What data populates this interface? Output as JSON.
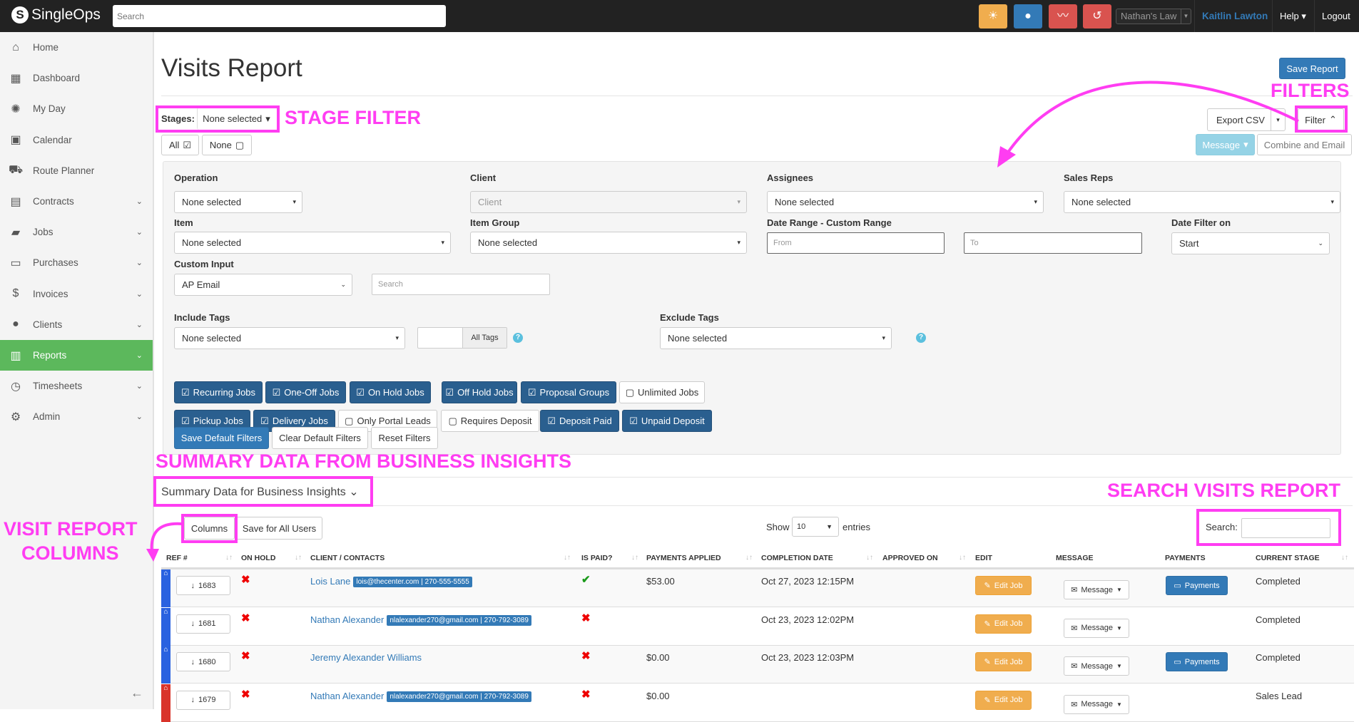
{
  "topbar": {
    "brand": "SingleOps",
    "search_placeholder": "Search",
    "account": "Nathan's Law",
    "user": "Kaitlin Lawton",
    "help": "Help",
    "logout": "Logout",
    "colors": {
      "sun": "#f0ad4e",
      "clock": "#337ab7",
      "chart": "#d9534f",
      "history": "#d9534f"
    }
  },
  "sidebar": {
    "items": [
      {
        "label": "Home",
        "icon": "home-icon"
      },
      {
        "label": "Dashboard",
        "icon": "dashboard-icon"
      },
      {
        "label": "My Day",
        "icon": "sun-icon"
      },
      {
        "label": "Calendar",
        "icon": "calendar-icon"
      },
      {
        "label": "Route Planner",
        "icon": "truck-icon"
      },
      {
        "label": "Contracts",
        "icon": "contracts-icon"
      },
      {
        "label": "Jobs",
        "icon": "briefcase-icon"
      },
      {
        "label": "Purchases",
        "icon": "purchases-icon"
      },
      {
        "label": "Invoices",
        "icon": "dollar-icon"
      },
      {
        "label": "Clients",
        "icon": "user-icon"
      },
      {
        "label": "Reports",
        "icon": "reports-icon",
        "active": true
      },
      {
        "label": "Timesheets",
        "icon": "clock-icon"
      },
      {
        "label": "Admin",
        "icon": "gear-icon"
      }
    ]
  },
  "page": {
    "title": "Visits Report",
    "save_report": "Save Report",
    "stages_label": "Stages:",
    "stages_value": "None selected",
    "all": "All",
    "none": "None",
    "export_csv": "Export CSV",
    "filter": "Filter",
    "message": "Message",
    "combine_email": "Combine and Email"
  },
  "filters": {
    "operation": {
      "label": "Operation",
      "value": "None selected"
    },
    "client": {
      "label": "Client",
      "placeholder": "Client"
    },
    "assignees": {
      "label": "Assignees",
      "value": "None selected"
    },
    "sales_reps": {
      "label": "Sales Reps",
      "value": "None selected"
    },
    "item": {
      "label": "Item",
      "value": "None selected"
    },
    "item_group": {
      "label": "Item Group",
      "value": "None selected"
    },
    "date_range": {
      "label": "Date Range - Custom Range",
      "from": "From",
      "to": "To"
    },
    "date_filter_on": {
      "label": "Date Filter on",
      "value": "Start"
    },
    "custom_input": {
      "label": "Custom Input",
      "value": "AP Email",
      "search": "Search"
    },
    "include_tags": {
      "label": "Include Tags",
      "value": "None selected",
      "all_tags": "All Tags"
    },
    "exclude_tags": {
      "label": "Exclude Tags",
      "value": "None selected"
    },
    "toggles": [
      {
        "label": "Recurring Jobs",
        "on": true
      },
      {
        "label": "One-Off Jobs",
        "on": true
      },
      {
        "label": "On Hold Jobs",
        "on": true
      },
      {
        "label": "Off Hold Jobs",
        "on": true
      },
      {
        "label": "Proposal Groups",
        "on": true
      },
      {
        "label": "Unlimited Jobs",
        "on": false
      },
      {
        "label": "Pickup Jobs",
        "on": true
      },
      {
        "label": "Delivery Jobs",
        "on": true
      },
      {
        "label": "Only Portal Leads",
        "on": false
      },
      {
        "label": "Requires Deposit",
        "on": false
      },
      {
        "label": "Deposit Paid",
        "on": true
      },
      {
        "label": "Unpaid Deposit",
        "on": true
      }
    ],
    "save_default": "Save Default Filters",
    "clear_default": "Clear Default Filters",
    "reset": "Reset Filters"
  },
  "summary": {
    "label": "Summary Data for Business Insights"
  },
  "table": {
    "columns_btn": "Columns",
    "save_all": "Save for All Users",
    "show": "Show",
    "entries_value": "10",
    "entries": "entries",
    "search_label": "Search:",
    "headers": [
      "REF #",
      "ON HOLD",
      "CLIENT / CONTACTS",
      "IS PAID?",
      "PAYMENTS APPLIED",
      "COMPLETION DATE",
      "APPROVED ON",
      "EDIT",
      "MESSAGE",
      "PAYMENTS",
      "CURRENT STAGE"
    ],
    "edit_label": "Edit Job",
    "message_label": "Message",
    "payments_label": "Payments",
    "rows": [
      {
        "ref": "1683",
        "on_hold": false,
        "client": "Lois Lane",
        "contact": "lois@thecenter.com | 270-555-5555",
        "paid": true,
        "applied": "$53.00",
        "completion": "Oct 27, 2023 12:15PM",
        "approved": "",
        "payments": true,
        "stage": "Completed",
        "stripe": "#2a62e0"
      },
      {
        "ref": "1681",
        "on_hold": false,
        "client": "Nathan Alexander",
        "contact": "nlalexander270@gmail.com | 270-792-3089",
        "paid": false,
        "applied": "",
        "completion": "Oct 23, 2023 12:02PM",
        "approved": "",
        "payments": false,
        "stage": "Completed",
        "stripe": "#2a62e0"
      },
      {
        "ref": "1680",
        "on_hold": false,
        "client": "Jeremy Alexander Williams",
        "contact": "",
        "paid": false,
        "applied": "$0.00",
        "completion": "Oct 23, 2023 12:03PM",
        "approved": "",
        "payments": true,
        "stage": "Completed",
        "stripe": "#2a62e0"
      },
      {
        "ref": "1679",
        "on_hold": false,
        "client": "Nathan Alexander",
        "contact": "nlalexander270@gmail.com | 270-792-3089",
        "paid": false,
        "applied": "$0.00",
        "completion": "",
        "approved": "",
        "payments": false,
        "stage": "Sales Lead",
        "stripe": "#d9342b"
      }
    ]
  },
  "annotations": {
    "stage_filter": "STAGE FILTER",
    "filters": "FILTERS",
    "summary": "SUMMARY DATA FROM BUSINESS INSIGHTS",
    "search": "SEARCH VISITS REPORT",
    "columns1": "VISIT REPORT",
    "columns2": "COLUMNS",
    "color": "#ff3df2"
  }
}
